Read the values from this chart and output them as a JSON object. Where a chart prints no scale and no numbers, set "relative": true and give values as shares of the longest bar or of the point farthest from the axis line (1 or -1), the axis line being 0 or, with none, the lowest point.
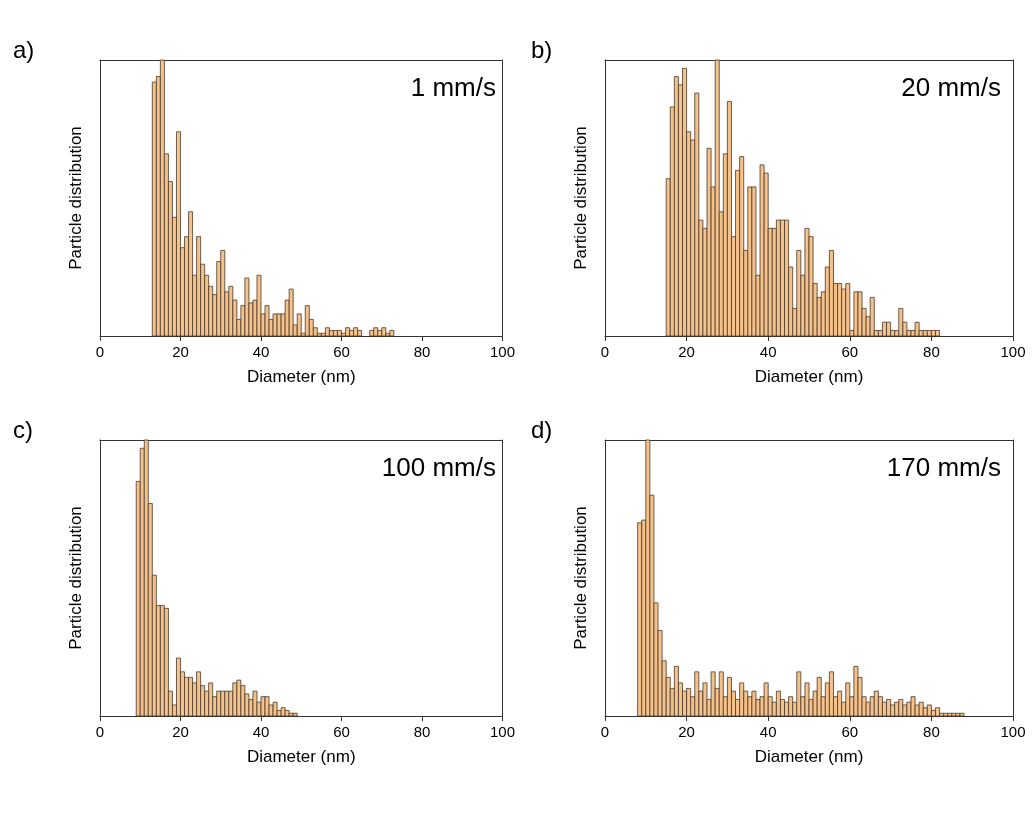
{
  "chart_data": [
    {
      "type": "bar",
      "title": "a)",
      "annotations": [
        "1 mm/s"
      ],
      "xlabel": "Diameter (nm)",
      "ylabel": "Particle distribution",
      "relative": true,
      "color": "#f5c28c",
      "xlim": [
        0,
        100
      ],
      "xticks": [
        0,
        20,
        40,
        60,
        80,
        100
      ],
      "x": [
        13.5,
        14.5,
        15.5,
        16.5,
        17.5,
        18.5,
        19.5,
        20.5,
        21.5,
        22.5,
        23.5,
        24.5,
        25.5,
        26.5,
        27.5,
        28.5,
        29.5,
        30.5,
        31.5,
        32.5,
        33.5,
        34.5,
        35.5,
        36.5,
        37.5,
        38.5,
        39.5,
        40.5,
        41.5,
        42.5,
        43.5,
        44.5,
        45.5,
        46.5,
        47.5,
        48.5,
        49.5,
        50.5,
        51.5,
        52.5,
        53.5,
        54.5,
        55.5,
        56.5,
        57.5,
        58.5,
        59.5,
        60.5,
        61.5,
        62.5,
        63.5,
        64.5,
        65.5,
        66.5,
        67.5,
        68.5,
        69.5,
        70.5,
        71.5,
        72.5
      ],
      "values": [
        0.92,
        0.94,
        1,
        0.66,
        0.56,
        0.43,
        0.74,
        0.32,
        0.36,
        0.45,
        0.22,
        0.36,
        0.26,
        0.22,
        0.18,
        0.15,
        0.27,
        0.31,
        0.16,
        0.18,
        0.13,
        0.06,
        0.11,
        0.21,
        0.12,
        0.13,
        0.22,
        0.08,
        0.11,
        0.06,
        0.08,
        0.08,
        0.08,
        0.13,
        0.17,
        0.04,
        0.08,
        0.01,
        0.11,
        0.06,
        0.03,
        0.01,
        0.01,
        0.03,
        0.02,
        0.02,
        0.02,
        0.01,
        0.03,
        0.02,
        0.03,
        0.02,
        null,
        null,
        0.02,
        0.03,
        0.02,
        0.03,
        0.01,
        0.02
      ]
    },
    {
      "type": "bar",
      "title": "b)",
      "annotations": [
        "20 mm/s"
      ],
      "xlabel": "Diameter (nm)",
      "ylabel": "Particle distribution",
      "relative": true,
      "color": "#f5c28c",
      "xlim": [
        0,
        100
      ],
      "xticks": [
        0,
        20,
        40,
        60,
        80,
        100
      ],
      "x": [
        15.5,
        16.5,
        17.5,
        18.5,
        19.5,
        20.5,
        21.5,
        22.5,
        23.5,
        24.5,
        25.5,
        26.5,
        27.5,
        28.5,
        29.5,
        30.5,
        31.5,
        32.5,
        33.5,
        34.5,
        35.5,
        36.5,
        37.5,
        38.5,
        39.5,
        40.5,
        41.5,
        42.5,
        43.5,
        44.5,
        45.5,
        46.5,
        47.5,
        48.5,
        49.5,
        50.5,
        51.5,
        52.5,
        53.5,
        54.5,
        55.5,
        56.5,
        57.5,
        58.5,
        59.5,
        60.5,
        61.5,
        62.5,
        63.5,
        64.5,
        65.5,
        66.5,
        67.5,
        68.5,
        69.5,
        70.5,
        71.5,
        72.5,
        73.5,
        74.5,
        75.5,
        76.5,
        77.5,
        78.5,
        79.5,
        80.5,
        81.5
      ],
      "values": [
        0.57,
        0.83,
        0.94,
        0.91,
        0.97,
        0.74,
        0.71,
        0.88,
        0.42,
        0.39,
        0.68,
        0.54,
        1,
        0.45,
        0.66,
        0.85,
        0.36,
        0.6,
        0.65,
        0.31,
        0.54,
        0.54,
        0.22,
        0.62,
        0.59,
        0.39,
        0.39,
        0.42,
        0.42,
        0.42,
        0.25,
        0.1,
        0.31,
        0.22,
        0.39,
        0.36,
        0.19,
        0.14,
        0.16,
        0.25,
        0.31,
        0.19,
        0.19,
        0.17,
        0.19,
        0.02,
        0.16,
        0.16,
        0.1,
        0.07,
        0.14,
        0.02,
        0.02,
        0.05,
        0.05,
        0.02,
        0.02,
        0.1,
        0.05,
        0.02,
        0.02,
        0.05,
        0.02,
        0.02,
        0.02,
        0.02,
        0.02
      ]
    },
    {
      "type": "bar",
      "title": "c)",
      "annotations": [
        "100 mm/s"
      ],
      "xlabel": "Diameter (nm)",
      "ylabel": "Particle distribution",
      "relative": true,
      "color": "#f5c28c",
      "xlim": [
        0,
        100
      ],
      "xticks": [
        0,
        20,
        40,
        60,
        80,
        100
      ],
      "x": [
        9.5,
        10.5,
        11.5,
        12.5,
        13.5,
        14.5,
        15.5,
        16.5,
        17.5,
        18.5,
        19.5,
        20.5,
        21.5,
        22.5,
        23.5,
        24.5,
        25.5,
        26.5,
        27.5,
        28.5,
        29.5,
        30.5,
        31.5,
        32.5,
        33.5,
        34.5,
        35.5,
        36.5,
        37.5,
        38.5,
        39.5,
        40.5,
        41.5,
        42.5,
        43.5,
        44.5,
        45.5,
        46.5,
        47.5,
        48.5
      ],
      "values": [
        0.85,
        0.97,
        1,
        0.77,
        0.51,
        0.4,
        0.4,
        0.39,
        0.09,
        0.04,
        0.21,
        0.16,
        0.14,
        0.14,
        0.12,
        0.16,
        0.11,
        0.09,
        0.12,
        0.07,
        0.09,
        0.09,
        0.09,
        0.09,
        0.12,
        0.13,
        0.11,
        0.08,
        0.06,
        0.09,
        0.05,
        0.07,
        0.07,
        0.04,
        0.05,
        0.02,
        0.03,
        0.02,
        0.01,
        0.01
      ]
    },
    {
      "type": "bar",
      "title": "d)",
      "annotations": [
        "170 mm/s"
      ],
      "xlabel": "Diameter (nm)",
      "ylabel": "Particle distribution",
      "relative": true,
      "color": "#f5c28c",
      "xlim": [
        0,
        100
      ],
      "xticks": [
        0,
        20,
        40,
        60,
        80,
        100
      ],
      "x": [
        8.5,
        9.5,
        10.5,
        11.5,
        12.5,
        13.5,
        14.5,
        15.5,
        16.5,
        17.5,
        18.5,
        19.5,
        20.5,
        21.5,
        22.5,
        23.5,
        24.5,
        25.5,
        26.5,
        27.5,
        28.5,
        29.5,
        30.5,
        31.5,
        32.5,
        33.5,
        34.5,
        35.5,
        36.5,
        37.5,
        38.5,
        39.5,
        40.5,
        41.5,
        42.5,
        43.5,
        44.5,
        45.5,
        46.5,
        47.5,
        48.5,
        49.5,
        50.5,
        51.5,
        52.5,
        53.5,
        54.5,
        55.5,
        56.5,
        57.5,
        58.5,
        59.5,
        60.5,
        61.5,
        62.5,
        63.5,
        64.5,
        65.5,
        66.5,
        67.5,
        68.5,
        69.5,
        70.5,
        71.5,
        72.5,
        73.5,
        74.5,
        75.5,
        76.5,
        77.5,
        78.5,
        79.5,
        80.5,
        81.5,
        82.5,
        83.5,
        84.5,
        85.5,
        86.5,
        87.5
      ],
      "values": [
        0.7,
        0.71,
        1,
        0.8,
        0.41,
        0.31,
        0.2,
        0.14,
        0.1,
        0.18,
        0.12,
        0.09,
        0.1,
        0.07,
        0.16,
        0.09,
        0.12,
        0.06,
        0.16,
        0.1,
        0.16,
        0.07,
        0.14,
        0.09,
        0.06,
        0.12,
        0.09,
        0.07,
        0.09,
        0.06,
        0.07,
        0.12,
        0.07,
        0.05,
        0.09,
        0.06,
        0.05,
        0.07,
        0.05,
        0.16,
        0.07,
        0.12,
        0.06,
        0.09,
        0.14,
        0.07,
        0.12,
        0.16,
        0.07,
        0.09,
        0.05,
        0.12,
        0.07,
        0.18,
        0.14,
        0.07,
        0.05,
        0.07,
        0.09,
        0.07,
        0.05,
        0.06,
        0.04,
        0.05,
        0.06,
        0.04,
        0.05,
        0.07,
        0.04,
        0.05,
        0.03,
        0.04,
        0.02,
        0.03,
        0.01,
        0.01,
        0.01,
        0.01,
        0.01,
        0.01
      ]
    }
  ]
}
